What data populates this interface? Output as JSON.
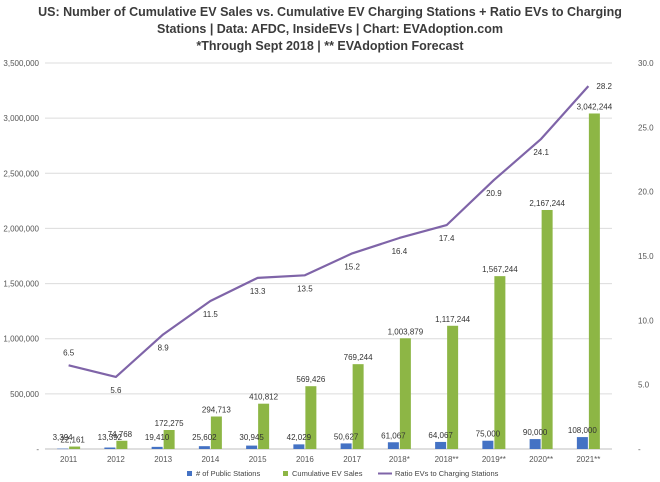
{
  "chart_data": {
    "type": "bar",
    "title_lines": [
      "US: Number of Cumulative EV Sales vs. Cumulative EV Charging Stations + Ratio EVs to Charging",
      "Stations | Data: AFDC, InsideEVs | Chart: EVAdoption.com",
      "*Through Sept 2018 | ** EVAdoption Forecast"
    ],
    "categories": [
      "2011",
      "2012",
      "2013",
      "2014",
      "2015",
      "2016",
      "2017",
      "2018*",
      "2018**",
      "2019**",
      "2020**",
      "2021**"
    ],
    "ylim": [
      0,
      3500000
    ],
    "yticks": [
      0,
      500000,
      1000000,
      1500000,
      2000000,
      2500000,
      3000000,
      3500000
    ],
    "ytick_labels": [
      "-",
      "500,000",
      "1,000,000",
      "1,500,000",
      "2,000,000",
      "2,500,000",
      "3,000,000",
      "3,500,000"
    ],
    "y2lim": [
      0,
      30
    ],
    "y2ticks": [
      0,
      5,
      10,
      15,
      20,
      25,
      30
    ],
    "y2tick_labels": [
      "-",
      "5.0",
      "10.0",
      "15.0",
      "20.0",
      "25.0",
      "30.0"
    ],
    "legend_position": "bottom",
    "series": [
      {
        "name": "# of Public Stations",
        "type": "bar",
        "axis": "left",
        "color": "#4472c4",
        "values": [
          3394,
          13392,
          19410,
          25602,
          30945,
          42029,
          50627,
          61067,
          64067,
          75000,
          90000,
          108000
        ],
        "labels": [
          "3,394",
          "13,392",
          "19,410",
          "25,602",
          "30,945",
          "42,029",
          "50,627",
          "61,067",
          "64,067",
          "75,000",
          "90,000",
          "108,000"
        ]
      },
      {
        "name": "Cumulative EV Sales",
        "type": "bar",
        "axis": "left",
        "color": "#8db645",
        "values": [
          22161,
          74768,
          172275,
          294713,
          410812,
          569426,
          769244,
          1003879,
          1117244,
          1567244,
          2167244,
          3042244
        ],
        "labels": [
          "22,161",
          "74,768",
          "172,275",
          "294,713",
          "410,812",
          "569,426",
          "769,244",
          "1,003,879",
          "1,117,244",
          "1,567,244",
          "2,167,244",
          "3,042,244"
        ]
      },
      {
        "name": "Ratio EVs to Charging Stations",
        "type": "line",
        "axis": "right",
        "color": "#7f64a8",
        "values": [
          6.5,
          5.6,
          8.9,
          11.5,
          13.3,
          13.5,
          15.2,
          16.4,
          17.4,
          20.9,
          24.1,
          28.2
        ],
        "labels": [
          "6.5",
          "5.6",
          "8.9",
          "11.5",
          "13.3",
          "13.5",
          "15.2",
          "16.4",
          "17.4",
          "20.9",
          "24.1",
          "28.2"
        ]
      }
    ]
  }
}
